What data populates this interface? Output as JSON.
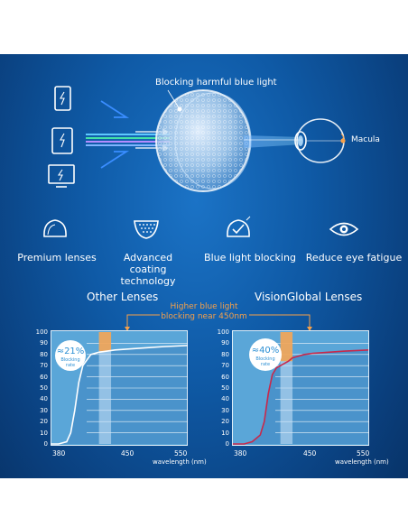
{
  "hero": {
    "blocking_label": "Blocking harmful blue light",
    "macula_label": "Macula",
    "devices": [
      "phone-icon",
      "tablet-icon",
      "monitor-icon"
    ]
  },
  "features": [
    {
      "label": "Premium lenses",
      "icon": "lens-icon"
    },
    {
      "label": "Advanced coating technology",
      "icon": "coating-icon"
    },
    {
      "label": "Blue light blocking",
      "icon": "blue-light-block-icon"
    },
    {
      "label": "Reduce eye fatigue",
      "icon": "eye-icon"
    }
  ],
  "comparison": {
    "left_title": "Other Lenses",
    "right_title": "VisionGlobal Lenses",
    "callout": "Higher blue light blocking near 450nm",
    "callout_color": "#f5a04a",
    "left_rate": "≈21%",
    "right_rate": "≈40%",
    "rate_caption": "Blocking rate",
    "xlabel": "wavelength (nm)",
    "y_ticks": [
      100,
      90,
      80,
      70,
      60,
      50,
      40,
      30,
      20,
      10,
      0
    ],
    "x_ticks": [
      380,
      450,
      550
    ]
  },
  "chart_data": [
    {
      "type": "area",
      "title": "Other Lenses",
      "xlabel": "wavelength (nm)",
      "xlim": [
        380,
        550
      ],
      "ylim": [
        0,
        100
      ],
      "highlight_band": [
        440,
        455
      ],
      "blocking_rate": "≈21%",
      "x": [
        380,
        390,
        400,
        405,
        410,
        415,
        420,
        430,
        440,
        450,
        460,
        480,
        500,
        520,
        550
      ],
      "values": [
        0,
        0,
        2,
        10,
        30,
        55,
        70,
        80,
        82,
        83,
        84,
        85,
        86,
        87,
        88
      ]
    },
    {
      "type": "area",
      "title": "VisionGlobal Lenses",
      "xlabel": "wavelength (nm)",
      "xlim": [
        380,
        550
      ],
      "ylim": [
        0,
        100
      ],
      "highlight_band": [
        440,
        455
      ],
      "blocking_rate": "≈40%",
      "x": [
        380,
        395,
        405,
        415,
        420,
        425,
        430,
        435,
        440,
        450,
        455,
        460,
        470,
        480,
        500,
        520,
        550
      ],
      "values": [
        0,
        0,
        2,
        8,
        20,
        45,
        62,
        68,
        70,
        74,
        77,
        78,
        80,
        81,
        82,
        83,
        84
      ]
    }
  ]
}
